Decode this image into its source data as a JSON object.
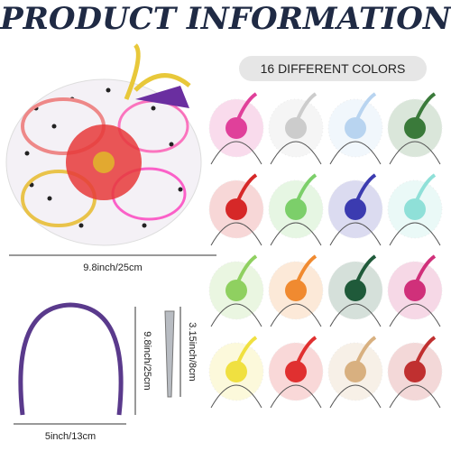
{
  "header": {
    "title": "PRODUCT INFORMATION"
  },
  "badge": {
    "text": "16 DIFFERENT COLORS"
  },
  "dimensions": {
    "fascinator_width": "9.8inch/25cm",
    "headband_height": "9.8inch/25cm",
    "clip_length": "3.15inch/8cm",
    "headband_width": "5inch/13cm"
  }
}
